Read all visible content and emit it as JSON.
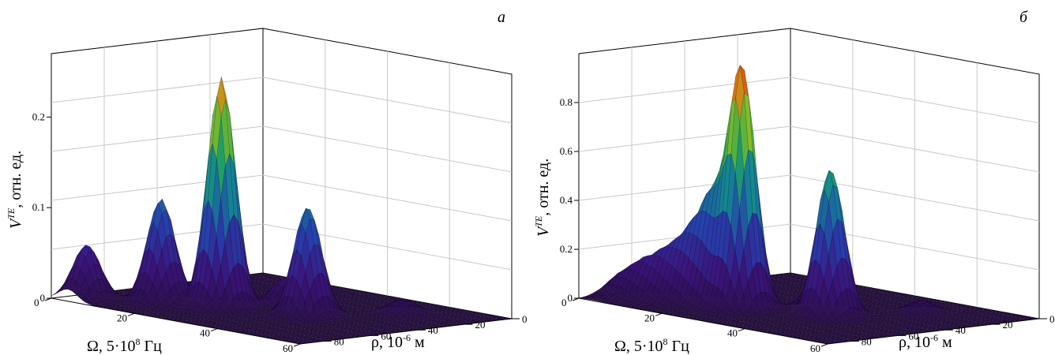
{
  "chart_data": [
    {
      "type": "surface",
      "panel_label": "а",
      "zlabel_main": "V",
      "zlabel_sup": "TE",
      "zlabel_rest": ", отн. ед.",
      "xlabel_main": "Ω, 5·10",
      "xlabel_sup": "8",
      "xlabel_rest": " Гц",
      "ylabel_main": "ρ, 10",
      "ylabel_sup": "-6",
      "ylabel_rest": " м",
      "x_ticks": [
        "0",
        "20",
        "40",
        "60"
      ],
      "y_ticks": [
        "0",
        "20",
        "40",
        "60",
        "80"
      ],
      "z_ticks": [
        "0",
        "0.1",
        "0.2"
      ],
      "xlim": [
        0,
        60
      ],
      "ylim": [
        0,
        90
      ],
      "zlim": [
        0,
        0.27
      ],
      "peaks": [
        {
          "omega": 4,
          "rho": 8,
          "value": 0.06
        },
        {
          "omega": 14,
          "rho": 22,
          "value": 0.115
        },
        {
          "omega": 24,
          "rho": 30,
          "value": 0.255
        },
        {
          "omega": 28,
          "rho": 50,
          "value": 0.03
        },
        {
          "omega": 38,
          "rho": 42,
          "value": 0.12
        },
        {
          "omega": 45,
          "rho": 70,
          "value": 0.015
        }
      ]
    },
    {
      "type": "surface",
      "panel_label": "б",
      "zlabel_main": "V",
      "zlabel_sup": "TE",
      "zlabel_rest": ", отн. ед.",
      "xlabel_main": "Ω, 5·10",
      "xlabel_sup": "8",
      "xlabel_rest": " Гц",
      "ylabel_main": "ρ, 10",
      "ylabel_sup": "-6",
      "ylabel_rest": " м",
      "x_ticks": [
        "0",
        "20",
        "40",
        "60"
      ],
      "y_ticks": [
        "0",
        "20",
        "40",
        "60",
        "80"
      ],
      "z_ticks": [
        "0",
        "0.2",
        "0.4",
        "0.6",
        "0.8"
      ],
      "xlim": [
        0,
        60
      ],
      "ylim": [
        0,
        90
      ],
      "zlim": [
        0,
        1.0
      ],
      "peaks": [
        {
          "omega": 3,
          "rho": 12,
          "value": 0.08
        },
        {
          "omega": 7,
          "rho": 15,
          "value": 0.13
        },
        {
          "omega": 11,
          "rho": 18,
          "value": 0.17
        },
        {
          "omega": 15,
          "rho": 21,
          "value": 0.24
        },
        {
          "omega": 19,
          "rho": 24,
          "value": 0.4
        },
        {
          "omega": 24,
          "rho": 27,
          "value": 0.98
        },
        {
          "omega": 32,
          "rho": 44,
          "value": 0.1
        },
        {
          "omega": 38,
          "rho": 40,
          "value": 0.6
        },
        {
          "omega": 44,
          "rho": 68,
          "value": 0.05
        }
      ]
    }
  ]
}
